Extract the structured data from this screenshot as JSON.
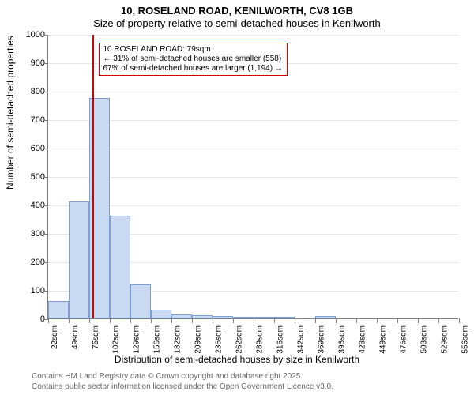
{
  "title_line1": "10, ROSELAND ROAD, KENILWORTH, CV8 1GB",
  "title_line2": "Size of property relative to semi-detached houses in Kenilworth",
  "ylabel": "Number of semi-detached properties",
  "xlabel": "Distribution of semi-detached houses by size in Kenilworth",
  "credits_line1": "Contains HM Land Registry data © Crown copyright and database right 2025.",
  "credits_line2": "Contains public sector information licensed under the Open Government Licence v3.0.",
  "chart": {
    "type": "histogram",
    "ylim": [
      0,
      1000
    ],
    "ytick_step": 100,
    "xlim": [
      22,
      556
    ],
    "xtick_start": 22,
    "xtick_step": 26.7,
    "xtick_count": 21,
    "xtick_unit": "sqm",
    "bar_color": "#c9d9f2",
    "bar_border": "#7f9fd2",
    "grid_color": "#e6e6e6",
    "axis_color": "#7f7f7f",
    "marker_color": "#d40000",
    "marker_x": 79,
    "background_color": "#ffffff",
    "bars": [
      {
        "x0": 22,
        "x1": 49,
        "y": 60
      },
      {
        "x0": 49,
        "x1": 75,
        "y": 410
      },
      {
        "x0": 75,
        "x1": 102,
        "y": 775
      },
      {
        "x0": 102,
        "x1": 129,
        "y": 360
      },
      {
        "x0": 129,
        "x1": 156,
        "y": 120
      },
      {
        "x0": 156,
        "x1": 182,
        "y": 30
      },
      {
        "x0": 182,
        "x1": 209,
        "y": 15
      },
      {
        "x0": 209,
        "x1": 236,
        "y": 10
      },
      {
        "x0": 236,
        "x1": 262,
        "y": 8
      },
      {
        "x0": 262,
        "x1": 289,
        "y": 5
      },
      {
        "x0": 289,
        "x1": 316,
        "y": 2
      },
      {
        "x0": 316,
        "x1": 342,
        "y": 2
      },
      {
        "x0": 342,
        "x1": 369,
        "y": 0
      },
      {
        "x0": 369,
        "x1": 396,
        "y": 8
      },
      {
        "x0": 396,
        "x1": 423,
        "y": 0
      },
      {
        "x0": 423,
        "x1": 449,
        "y": 0
      }
    ]
  },
  "annotation": {
    "line1": "10 ROSELAND ROAD: 79sqm",
    "line2": "← 31% of semi-detached houses are smaller (558)",
    "line3": "67% of semi-detached houses are larger (1,194) →"
  }
}
